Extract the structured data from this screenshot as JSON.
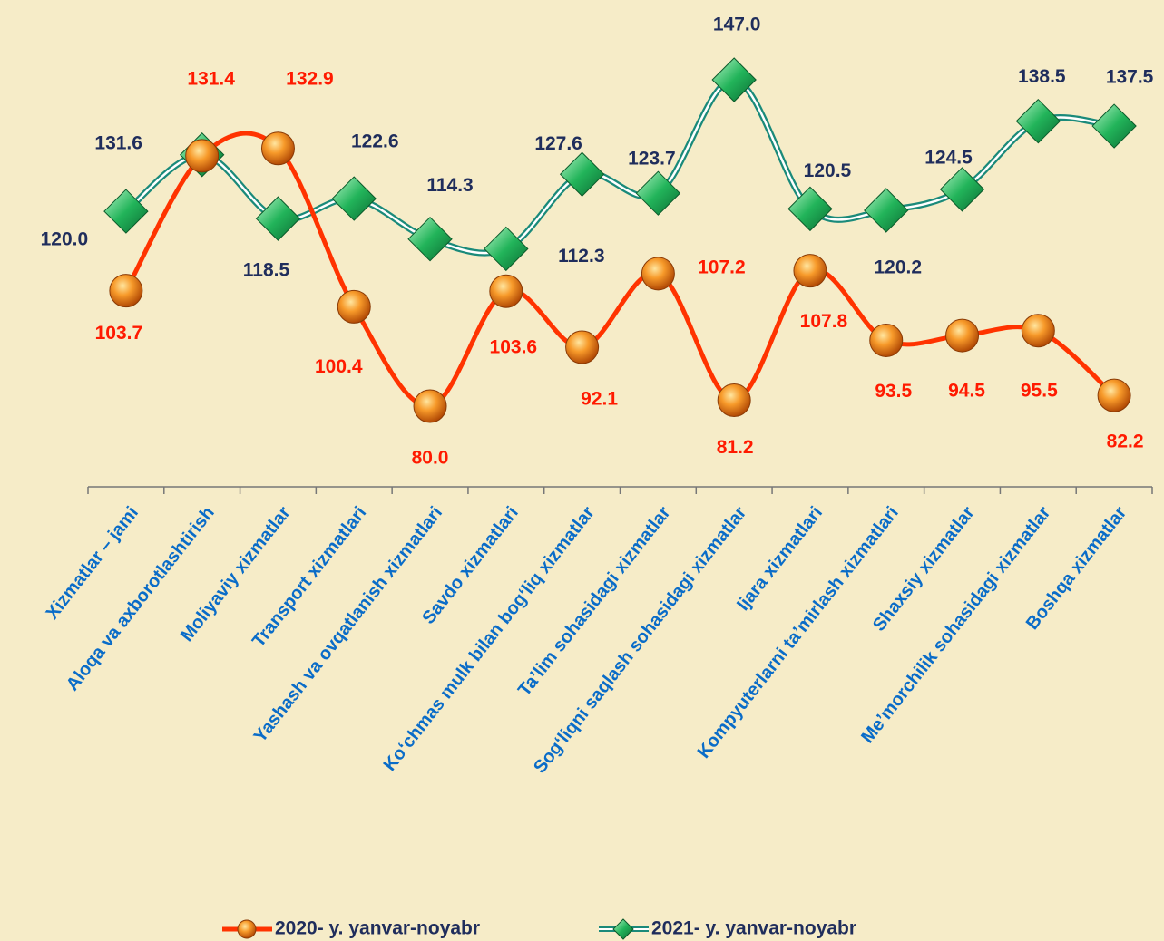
{
  "chart_data": {
    "type": "line",
    "categories": [
      "Xizmatlar – jami",
      "Aloqa va axborotlashtirish",
      "Moliyaviy xizmatlar",
      "Transport xizmatlari",
      "Yashash va ovqatlanish xizmatlari",
      "Savdo xizmatlari",
      "Ko‘chmas mulk bilan bog‘liq xizmatlar",
      "Ta’lim sohasidagi xizmatlar",
      "Sog‘liqni saqlash sohasidagi xizmatlar",
      "Ijara xizmatlari",
      "Kompyuterlarni ta’mirlash xizmatlari",
      "Shaxsiy xizmatlar",
      "Me’morchilik sohasidagi xizmatlar",
      "Boshqa xizmatlar"
    ],
    "series": [
      {
        "name": "2020- y. yanvar-noyabr",
        "color": "#ff3300",
        "values": [
          103.7,
          131.4,
          132.9,
          100.4,
          80.0,
          103.6,
          92.1,
          107.2,
          81.2,
          107.8,
          93.5,
          94.5,
          95.5,
          82.2
        ],
        "value_labels": [
          "103.7",
          "131.4",
          "132.9",
          "100.4",
          "80.0",
          "103.6",
          "92.1",
          "107.2",
          "81.2",
          "107.8",
          "93.5",
          "94.5",
          "95.5",
          "82.2"
        ]
      },
      {
        "name": "2021- y. yanvar-noyabr",
        "color": "#1a8a7a",
        "values": [
          120.0,
          131.6,
          118.5,
          122.6,
          114.3,
          112.3,
          127.6,
          123.7,
          147.0,
          120.5,
          120.2,
          124.5,
          138.5,
          137.5
        ],
        "value_labels": [
          "120.0",
          "131.6",
          "118.5",
          "122.6",
          "114.3",
          "112.3",
          "127.6",
          "123.7",
          "147.0",
          "120.5",
          "120.2",
          "124.5",
          "138.5",
          "137.5"
        ]
      }
    ]
  }
}
